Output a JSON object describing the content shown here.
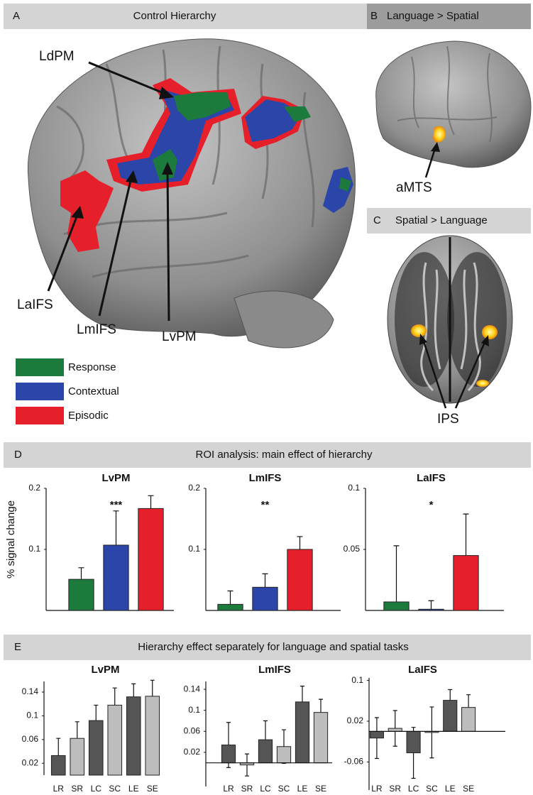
{
  "figure": {
    "panel_a": {
      "letter": "A",
      "title": "Control Hierarchy",
      "labels": [
        "LdPM",
        "LaIFS",
        "LmIFS",
        "LvPM"
      ],
      "legend": [
        {
          "label": "Response",
          "color": "#1b7a3c"
        },
        {
          "label": "Contextual",
          "color": "#2b46a8"
        },
        {
          "label": "Episodic",
          "color": "#e6202b"
        }
      ]
    },
    "panel_b": {
      "letter": "B",
      "title": "Language > Spatial",
      "label": "aMTS"
    },
    "panel_c": {
      "letter": "C",
      "title": "Spatial > Language",
      "label": "IPS"
    },
    "panel_d": {
      "letter": "D",
      "title": "ROI analysis: main effect of hierarchy",
      "y_label": "% signal change"
    },
    "panel_e": {
      "letter": "E",
      "title": "Hierarchy effect separately for language and spatial tasks"
    }
  },
  "chart_data": [
    {
      "type": "bar",
      "title": "LvPM",
      "annotation": "***",
      "categories": [
        null,
        null,
        null
      ],
      "values": [
        0.051,
        0.107,
        0.167
      ],
      "errors": [
        0.019,
        0.056,
        0.021
      ],
      "colors": [
        "#1b7a3c",
        "#2b46a8",
        "#e6202b"
      ],
      "error_bars": "one-sided",
      "zero_line": false,
      "ylim": [
        0,
        0.2
      ],
      "yticks": [
        0.1,
        0.2
      ]
    },
    {
      "type": "bar",
      "title": "LmIFS",
      "annotation": "**",
      "categories": [
        null,
        null,
        null
      ],
      "values": [
        0.01,
        0.038,
        0.1
      ],
      "errors": [
        0.022,
        0.022,
        0.021
      ],
      "colors": [
        "#1b7a3c",
        "#2b46a8",
        "#e6202b"
      ],
      "error_bars": "one-sided",
      "zero_line": false,
      "ylim": [
        0,
        0.2
      ],
      "yticks": [
        0.1,
        0.2
      ]
    },
    {
      "type": "bar",
      "title": "LaIFS",
      "annotation": "*",
      "categories": [
        null,
        null,
        null
      ],
      "values": [
        0.007,
        0.001,
        0.045
      ],
      "errors": [
        0.046,
        0.007,
        0.034
      ],
      "colors": [
        "#1b7a3c",
        "#2b46a8",
        "#e6202b"
      ],
      "error_bars": "one-sided",
      "zero_line": false,
      "ylim": [
        0,
        0.1
      ],
      "yticks": [
        0.05,
        0.1
      ]
    },
    {
      "type": "bar",
      "title": "LvPM",
      "categories": [
        "LR",
        "SR",
        "LC",
        "SC",
        "LE",
        "SE"
      ],
      "values": [
        0.033,
        0.062,
        0.092,
        0.118,
        0.132,
        0.133
      ],
      "errors": [
        0.029,
        0.028,
        0.026,
        0.029,
        0.022,
        0.027
      ],
      "colors": [
        "#555555",
        "#bdbdbd",
        "#555555",
        "#bdbdbd",
        "#555555",
        "#bdbdbd"
      ],
      "error_bars": "two-sided",
      "zero_line": false,
      "ylim": [
        0,
        0.158
      ],
      "yticks": [
        0.02,
        0.06,
        0.1,
        0.14
      ]
    },
    {
      "type": "bar",
      "title": "LmIFS",
      "categories": [
        "LR",
        "SR",
        "LC",
        "SC",
        "LE",
        "SE"
      ],
      "values": [
        0.034,
        -0.004,
        0.044,
        0.031,
        0.116,
        0.096
      ],
      "errors": [
        0.043,
        0.021,
        0.036,
        0.032,
        0.03,
        0.025
      ],
      "colors": [
        "#555555",
        "#bdbdbd",
        "#555555",
        "#bdbdbd",
        "#555555",
        "#bdbdbd"
      ],
      "error_bars": "two-sided",
      "zero_line": true,
      "ylim": [
        -0.045,
        0.155
      ],
      "yticks": [
        0.02,
        0.06,
        0.1,
        0.14
      ]
    },
    {
      "type": "bar",
      "title": "LaIFS",
      "categories": [
        "LR",
        "SR",
        "LC",
        "SC",
        "LE",
        "SE"
      ],
      "values": [
        -0.013,
        0.006,
        -0.042,
        -0.002,
        0.061,
        0.047
      ],
      "errors": [
        0.04,
        0.035,
        0.05,
        0.05,
        0.021,
        0.025
      ],
      "colors": [
        "#555555",
        "#bdbdbd",
        "#555555",
        "#bdbdbd",
        "#555555",
        "#bdbdbd"
      ],
      "error_bars": "two-sided",
      "zero_line": true,
      "ylim": [
        -0.115,
        0.105
      ],
      "yticks": [
        -0.06,
        0.02,
        0.1
      ]
    }
  ]
}
